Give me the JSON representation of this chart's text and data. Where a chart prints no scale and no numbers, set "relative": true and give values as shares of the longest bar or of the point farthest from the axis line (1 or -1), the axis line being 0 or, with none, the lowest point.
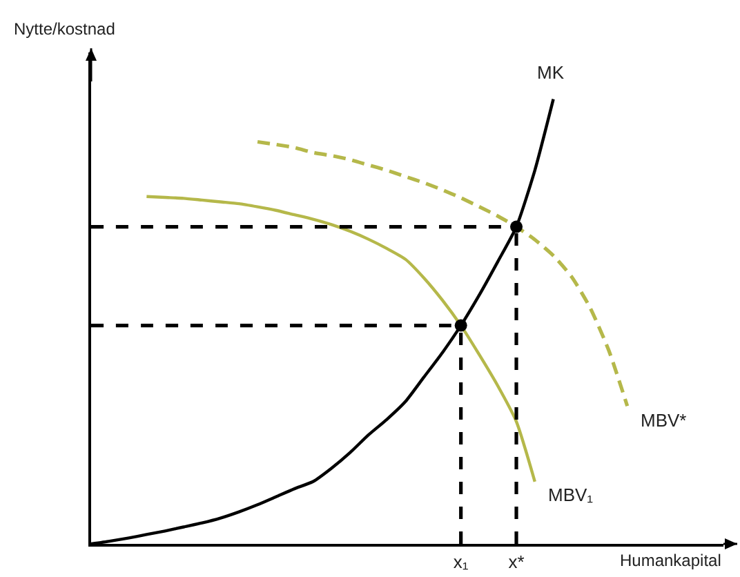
{
  "chart_data": {
    "type": "line",
    "relative": true,
    "xlabel": "Humankapital",
    "ylabel": "Nytte/kostnad",
    "categories": [
      null,
      null,
      null,
      null,
      null,
      null,
      null,
      null,
      null,
      null,
      null,
      null,
      null,
      null,
      null,
      null,
      null,
      null,
      null,
      null,
      "x₁",
      null,
      null,
      "x*",
      null,
      null,
      null,
      null,
      null,
      null,
      null,
      null,
      null,
      null,
      null
    ],
    "grid": false,
    "legend": false,
    "tick_labels": "x",
    "series": [
      {
        "name": "MK",
        "color": "#000000",
        "line_style": "solid",
        "values": [
          0,
          0.006,
          0.013,
          0.021,
          0.029,
          0.038,
          0.047,
          0.058,
          0.072,
          0.088,
          0.106,
          0.124,
          0.14,
          0.17,
          0.205,
          0.245,
          0.28,
          0.32,
          0.375,
          0.43,
          0.491,
          0.56,
          0.635,
          0.713,
          0.84,
          1,
          null,
          null,
          null,
          null,
          null,
          null,
          null,
          null,
          null
        ]
      },
      {
        "name": "MBV₁",
        "color": "#b5b84a",
        "line_style": "solid",
        "values": [
          null,
          null,
          null,
          0.781,
          0.779,
          0.777,
          0.773,
          0.769,
          0.765,
          0.758,
          0.75,
          0.74,
          0.73,
          0.718,
          0.703,
          0.685,
          0.664,
          0.64,
          0.598,
          0.548,
          0.491,
          0.425,
          0.355,
          0.275,
          0.14,
          null,
          null,
          null,
          null,
          null,
          null,
          null,
          null,
          null,
          null
        ]
      },
      {
        "name": "MBV*",
        "color": "#b5b84a",
        "line_style": "dashed",
        "values": [
          null,
          null,
          null,
          null,
          null,
          null,
          null,
          null,
          null,
          0.904,
          0.898,
          0.891,
          0.88,
          0.873,
          0.864,
          0.852,
          0.84,
          0.826,
          0.812,
          0.796,
          0.778,
          0.758,
          0.737,
          0.713,
          0.684,
          0.648,
          0.6,
          0.53,
          0.435,
          0.31,
          null,
          null,
          null,
          null,
          null
        ]
      },
      {
        "color": "#000000",
        "line_style": "dashed",
        "values": [
          0.713,
          0.713,
          0.713,
          0.713,
          0.713,
          0.713,
          0.713,
          0.713,
          0.713,
          0.713,
          0.713,
          0.713,
          0.713,
          0.713,
          0.713,
          0.713,
          0.713,
          0.713,
          0.713,
          0.713,
          0.713,
          0.713,
          0.713,
          0.713,
          null,
          null,
          null,
          null,
          null,
          null,
          null,
          null,
          null,
          null,
          null
        ]
      },
      {
        "color": "#000000",
        "line_style": "dashed",
        "values": [
          0.491,
          0.491,
          0.491,
          0.491,
          0.491,
          0.491,
          0.491,
          0.491,
          0.491,
          0.491,
          0.491,
          0.491,
          0.491,
          0.491,
          0.491,
          0.491,
          0.491,
          0.491,
          0.491,
          0.491,
          0.491,
          null,
          null,
          null,
          null,
          null,
          null,
          null,
          null,
          null,
          null,
          null,
          null,
          null,
          null
        ]
      },
      {
        "color": "#000000",
        "line_style": "dashed",
        "x": [
          "x₁",
          "x₁"
        ],
        "values": [
          0,
          0.491
        ]
      },
      {
        "color": "#000000",
        "line_style": "dashed",
        "x": [
          "x*",
          "x*"
        ],
        "values": [
          0,
          0.713
        ]
      },
      {
        "type": "scatter",
        "color": "#000000",
        "marker": "circle",
        "x": [
          "x₁",
          "x*"
        ],
        "values": [
          0.491,
          0.713
        ]
      }
    ]
  }
}
